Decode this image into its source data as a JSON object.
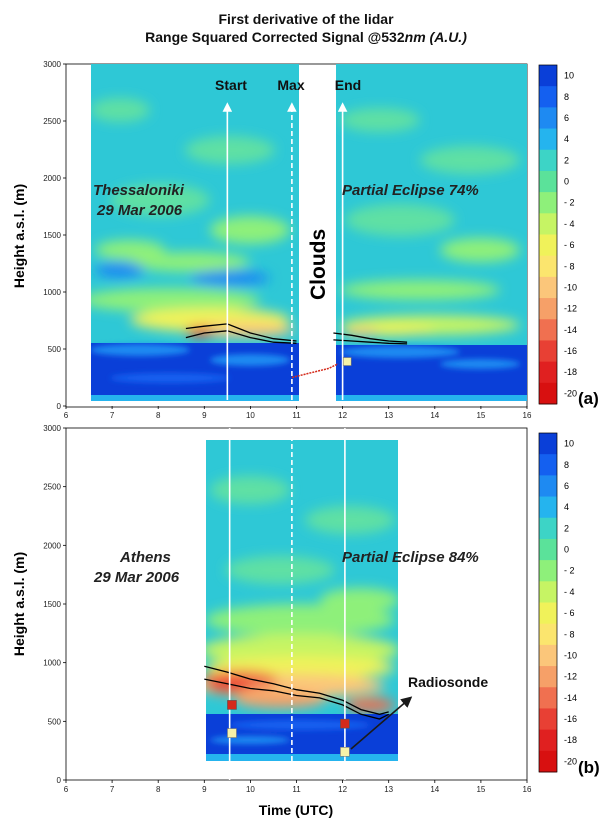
{
  "title": {
    "line1": "First derivative of the lidar",
    "line2_main": "Range Squared Corrected Signal @532",
    "line2_italic": "nm (A.U.)"
  },
  "colorbar": {
    "levels": [
      "10",
      "8",
      "6",
      "4",
      "2",
      "0",
      "- 2",
      "- 4",
      "- 6",
      "- 8",
      "-10",
      "-12",
      "-14",
      "-16",
      "-18",
      "-20"
    ],
    "colors": [
      "#0a3fd8",
      "#1460f0",
      "#1e8af2",
      "#25b4ee",
      "#3dd4c6",
      "#5be29a",
      "#8ef07a",
      "#c6f464",
      "#f0f25a",
      "#fbe56e",
      "#fbc67a",
      "#f6a068",
      "#f07050",
      "#e84034",
      "#e02020",
      "#d81010"
    ]
  },
  "colors": {
    "bg_field": "#2ec8d6",
    "mid_field": "#5ee0a4",
    "bright_layer": "#f2e45e",
    "hot_layer": "#ea3b2e",
    "ground_layer": "#0a3fd8",
    "line_black": "#000000",
    "guide_white": "#ffffff",
    "marker_red": "#d42a1a",
    "marker_yellow": "#f6f2a8"
  },
  "panels": [
    {
      "label": "(a)",
      "location_line1": "Thessaloniki",
      "location_line2": "29 Mar 2006",
      "eclipse": "Partial Eclipse 74%",
      "markers": {
        "start": "Start",
        "max": "Max",
        "end": "End"
      },
      "clouds_label": "Clouds"
    },
    {
      "label": "(b)",
      "location_line1": "Athens",
      "location_line2": "29 Mar 2006",
      "eclipse": "Partial Eclipse 84%",
      "radiosonde": "Radiosonde"
    }
  ],
  "axis_labels": {
    "y": "Height a.s.l. (m)",
    "x": "Time (UTC)"
  },
  "chart_data": [
    {
      "type": "heatmap",
      "panel": "(a)",
      "xlim": [
        6,
        16
      ],
      "ylim": [
        0,
        3000
      ],
      "x_ticks": [
        6,
        7,
        8,
        9,
        10,
        11,
        12,
        13,
        14,
        15,
        16
      ],
      "y_ticks": [
        0,
        500,
        1000,
        1500,
        2000,
        2500,
        3000
      ],
      "data_window_1": [
        6.5,
        10.9
      ],
      "data_window_2": [
        11.8,
        16
      ],
      "event_times": {
        "start": 9.5,
        "max": 10.9,
        "end": 12.0
      },
      "layer_top_line": {
        "x": [
          8.6,
          9.0,
          9.5,
          10.0,
          10.5,
          11.0
        ],
        "y": [
          680,
          700,
          720,
          640,
          590,
          570
        ]
      },
      "layer_bottom_line": {
        "x": [
          8.6,
          9.0,
          9.5,
          10.0,
          10.5,
          11.0
        ],
        "y": [
          600,
          640,
          660,
          600,
          560,
          550
        ]
      },
      "layer_top_line_2": {
        "x": [
          11.8,
          12.2,
          12.6,
          13.0,
          13.4
        ],
        "y": [
          640,
          620,
          590,
          570,
          560
        ]
      },
      "layer_bottom_line_2": {
        "x": [
          11.8,
          12.2,
          12.6,
          13.0,
          13.4
        ],
        "y": [
          580,
          570,
          560,
          550,
          545
        ]
      },
      "sonde_trace": {
        "x": [
          10.9,
          11.1,
          11.4,
          11.7,
          11.9
        ],
        "y": [
          250,
          270,
          300,
          330,
          370
        ]
      },
      "marker_yellow": {
        "x": 12.1,
        "y": 390
      }
    },
    {
      "type": "heatmap",
      "panel": "(b)",
      "xlim": [
        6,
        16
      ],
      "ylim": [
        0,
        3000
      ],
      "x_ticks": [
        6,
        7,
        8,
        9,
        10,
        11,
        12,
        13,
        14,
        15,
        16
      ],
      "y_ticks": [
        0,
        500,
        1000,
        1500,
        2000,
        2500,
        3000
      ],
      "data_window": [
        9.0,
        13.2
      ],
      "event_times": {
        "start": 9.55,
        "max": 10.9,
        "end": 12.05
      },
      "layer_top_line": {
        "x": [
          9.0,
          9.5,
          10.0,
          10.5,
          11.0,
          11.5,
          12.0,
          12.4,
          12.8,
          13.0
        ],
        "y": [
          970,
          920,
          860,
          820,
          770,
          740,
          680,
          600,
          560,
          580
        ]
      },
      "layer_bottom_line": {
        "x": [
          9.0,
          9.5,
          10.0,
          10.5,
          11.0,
          11.5,
          12.0,
          12.4,
          12.8,
          13.0
        ],
        "y": [
          860,
          820,
          780,
          760,
          720,
          700,
          640,
          560,
          520,
          560
        ]
      },
      "markers_red": [
        {
          "x": 9.6,
          "y": 640
        },
        {
          "x": 12.05,
          "y": 480
        }
      ],
      "markers_yellow": [
        {
          "x": 9.6,
          "y": 400
        },
        {
          "x": 12.05,
          "y": 240
        }
      ]
    }
  ]
}
